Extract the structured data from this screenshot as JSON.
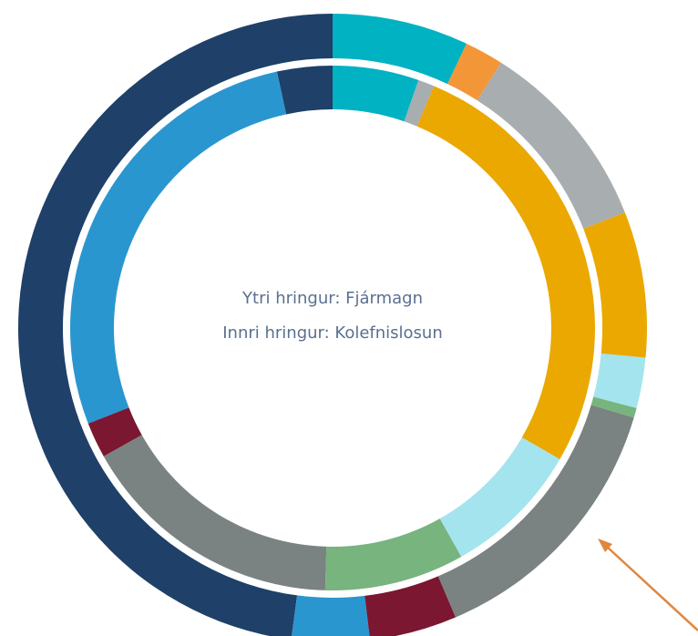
{
  "chart_data": {
    "type": "donut",
    "center_text": [
      "Ytri hringur: Fjármagn",
      "Innri hringur: Kolefnislosun"
    ],
    "series": [
      {
        "values": [
          7,
          2,
          10,
          7.5,
          2.6,
          0.5,
          14,
          4.5,
          4,
          47.9
        ],
        "colors": [
          "#00b2c2",
          "#f39638",
          "#a8adb0",
          "#eaa800",
          "#a4e4ee",
          "#77b47e",
          "#7a8282",
          "#7b1730",
          "#2a96d0",
          "#1f4068"
        ]
      },
      {
        "values": [
          5.3,
          1,
          27,
          8.5,
          8.6,
          16.4,
          2.2,
          27.5,
          3.4
        ],
        "colors": [
          "#00b2c2",
          "#a8adb0",
          "#eaa800",
          "#a4e4ee",
          "#77b47e",
          "#7a8282",
          "#7b1730",
          "#2a96d0",
          "#1f4068"
        ]
      }
    ]
  }
}
